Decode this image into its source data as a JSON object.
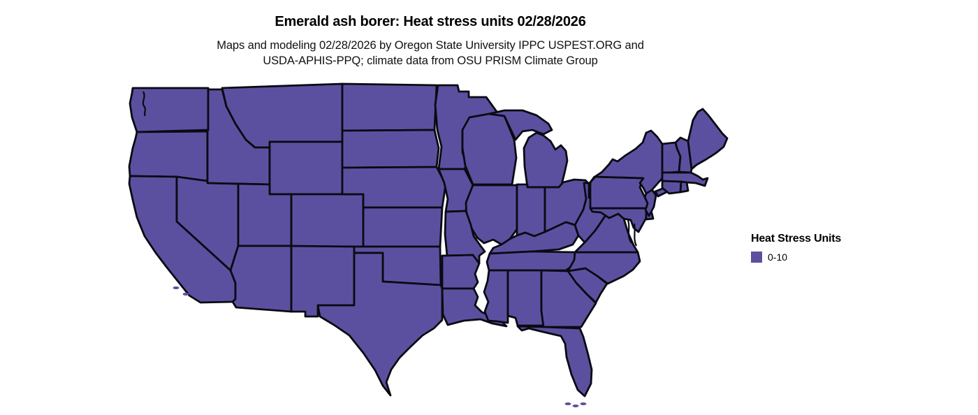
{
  "title": "Emerald ash borer: Heat stress units 02/28/2026",
  "subtitle": {
    "line1": "Maps and modeling 02/28/2026 by Oregon State University IPPC USPEST.ORG and",
    "line2": "USDA-APHIS-PPQ; climate data from OSU PRISM Climate Group"
  },
  "legend": {
    "title": "Heat Stress Units",
    "items": [
      {
        "label": "0-10",
        "color": "#5b50a0"
      }
    ]
  },
  "map": {
    "region": "Contiguous United States choropleth",
    "fill_color": "#5b50a0",
    "border_color": "#0a0a12"
  }
}
